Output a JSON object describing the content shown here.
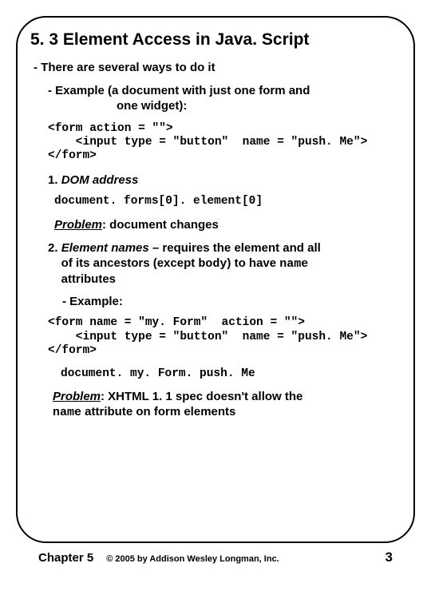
{
  "title": "5. 3 Element Access in Java. Script",
  "intro": "- There are several ways to do it",
  "example_label": "- Example (a document with just one form and",
  "example_cont": "one widget):",
  "code1_l1": "<form action = \"\">",
  "code1_l2": "    <input type = \"button\"  name = \"push. Me\">",
  "code1_l3": "</form>",
  "method1_num": "1. ",
  "method1_label": "DOM address",
  "code_dom": "document. forms[0]. element[0]",
  "problem1_label": "Problem",
  "problem1_text": ": document changes",
  "method2_num": "2. ",
  "method2_label": "Element names",
  "method2_rest1": " – requires the element and all",
  "method2_rest2": "of its ancestors (except ",
  "method2_body": "body",
  "method2_rest3": ") to have ",
  "method2_name": "name",
  "method2_rest4": "attributes",
  "example2": "- Example:",
  "code2_l1": "<form name = \"my. Form\"  action = \"\">",
  "code2_l2": "    <input type = \"button\"  name = \"push. Me\">",
  "code2_l3": "</form>",
  "code_path": "document. my. Form. push. Me",
  "problem2_label": "Problem",
  "problem2_text1": ": XHTML 1. 1 spec doesn't allow the",
  "problem2_name": "name",
  "problem2_text2": " attribute on form elements",
  "footer_chapter": "Chapter 5",
  "footer_copy": "© 2005 by Addison Wesley Longman, Inc.",
  "footer_page": "3"
}
